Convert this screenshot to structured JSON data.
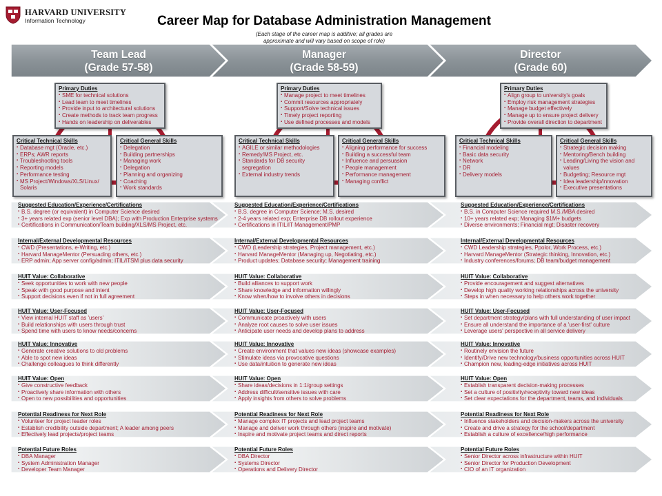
{
  "header": {
    "org_name": "HARVARD UNIVERSITY",
    "org_sub": "Information Technology",
    "title": "Career Map for Database Administration Management",
    "subtitle_line1": "(Each stage of the career map is additive; all grades are",
    "subtitle_line2": "approximate and will vary based on scope of role)"
  },
  "colors": {
    "accent": "#a51c30",
    "banner": "#8c9499",
    "box_fill": "#d6d9dd",
    "box_border": "#595d62"
  },
  "stages": [
    {
      "name": "Team Lead",
      "grade": "(Grade 57-58)",
      "primary_duties": {
        "title": "Primary Duties",
        "items": [
          "SME for technical solutions",
          "Lead team to meet timelines",
          "Provide input to architectural solutions",
          "Create methods to track team progress",
          "Hands on leadership on deliverables"
        ]
      },
      "technical_skills": {
        "title": "Critical Technical Skills",
        "items": [
          "Database mgt (Oracle, etc.)",
          "ERPs; AWR reports",
          "Troubleshooting tools",
          "Reporting models",
          "Performance testing",
          "MS Project/Windows/XLS/Linux/ Solaris"
        ]
      },
      "general_skills": {
        "title": "Critical General Skills",
        "items": [
          "Delegation",
          "Building partnerships",
          "Managing work",
          "Delegation",
          "Planning and organizing",
          "Coaching",
          "Work standards"
        ]
      }
    },
    {
      "name": "Manager",
      "grade": "(Grade 58-59)",
      "primary_duties": {
        "title": "Primary Duties",
        "items": [
          "Manage project to meet timelines",
          "Commit resources appropriately",
          "Support/Solve technical issues",
          "Timely project reporting",
          "Use defined processes and models"
        ]
      },
      "technical_skills": {
        "title": "Critical Technical Skills",
        "items": [
          "AGILE or similar methodologies",
          "Remedy/MS Project, etc.",
          "Standards for DB security segregation",
          "External industry trends"
        ]
      },
      "general_skills": {
        "title": "Critical General Skills",
        "items": [
          "Aligning performance for success",
          "Building a successful team",
          "Influence and persuasion",
          "People management",
          "Performance management",
          "Managing conflict"
        ]
      }
    },
    {
      "name": "Director",
      "grade": "(Grade 60)",
      "primary_duties": {
        "title": "Primary Duties",
        "items": [
          "Align group to university's goals",
          "Employ risk management strategies",
          "Manage budget effectively",
          "Manage up to ensure project delivery",
          "Provide overall direction to department"
        ]
      },
      "technical_skills": {
        "title": "Critical Technical Skills",
        "items": [
          "Financial modeling",
          "Basic data security",
          "Network",
          "DR",
          "Delivery models"
        ]
      },
      "general_skills": {
        "title": "Critical General Skills",
        "items": [
          "Strategic decision making",
          "Mentoring/Bench building",
          "Leading/Living the vision and values",
          "Budgeting; Resource mgt",
          "Idea leadership/innovation",
          "Executive presentations"
        ]
      }
    }
  ],
  "bands": [
    {
      "cells": [
        {
          "title": "Suggested Education/Experience/Certifications",
          "items": [
            "B.S. degree (or equivalent) in Computer Science desired",
            "3+ years related exp (senior level DBA); Exp with Production Enterprise systems",
            "Certifications in Communication/Team building/XLS/MS Project, etc."
          ]
        },
        {
          "title": "Suggested Education/Experience/Certifications",
          "items": [
            "B.S. degree in Computer Science; M.S. desired",
            "2-4 years related exp; Enterprise DB rollout experience",
            "Certifications in ITIL/IT Management/PMP"
          ]
        },
        {
          "title": "Suggested Education/Experience/Certifications",
          "items": [
            "B.S. in Computer Science required  M.S./MBA desired",
            "10+ years related exp; Managing $1M+ budgets",
            "Diverse environments; Financial mgt; Disaster recovery"
          ]
        }
      ]
    },
    {
      "cells": [
        {
          "title": "Internal/External Developmental Resources",
          "items": [
            "CWD (Presentations, e-Writing, etc.)",
            "Harvard ManageMentor (Persuading others, etc.)",
            "ERP admin; App server config/admin; ITIL/ITSM plus data security"
          ]
        },
        {
          "title": "Internal/External Developmental Resources",
          "items": [
            "CWD (Leadership strategies, Project management, etc.)",
            "Harvard ManageMentor (Managing up, Negotiating, etc.)",
            "Product updates; Database security; Management training"
          ]
        },
        {
          "title": "Internal/External Developmental Resources",
          "items": [
            "CWD Leadership strategies, Ppolor, Work Process, etc.)",
            "Harvard ManageMentor (Strategic thinking, Innovation, etc.)",
            "Industry conferences/forums; DB team/budget management"
          ]
        }
      ]
    },
    {
      "cells": [
        {
          "title": "HUIT Value: Collaborative",
          "items": [
            "Seek opportunities to work with new people",
            "Speak with good purpose and intent",
            "Support decisions even if not in full agreement"
          ]
        },
        {
          "title": "HUIT Value: Collaborative",
          "items": [
            "Build alliances to support work",
            "Share knowledge and information willingly",
            "Know when/how to involve others in decisions"
          ]
        },
        {
          "title": "HUIT Value: Collaborative",
          "items": [
            "Provide encouragement and suggest alternatives",
            "Develop high quality working relationships across the university",
            "Steps in when necessary to help others work together"
          ]
        }
      ]
    },
    {
      "cells": [
        {
          "title": "HUIT Value: User-Focused",
          "items": [
            "View internal HUIT staff as 'users'",
            "Build relationships with users through trust",
            "Spend time with users to know needs/concerns"
          ]
        },
        {
          "title": "HUIT Value: User-Focused",
          "items": [
            "Communicate proactively with users",
            "Analyze root causes to solve user issues",
            "Anticipate user needs and develop plans to address"
          ]
        },
        {
          "title": "HUIT Value: User-Focused",
          "items": [
            "Set department strategy/plans with full understanding of user impact",
            "Ensure all understand the importance of a 'user-first' culture",
            "Leverage users' perspective in all service delivery"
          ]
        }
      ]
    },
    {
      "cells": [
        {
          "title": "HUIT Value: Innovative",
          "items": [
            "Generate creative solutions to old problems",
            "Able to spot new ideas",
            "Challenge colleagues to think differently"
          ]
        },
        {
          "title": "HUIT Value: Innovative",
          "items": [
            "Create environment that values new ideas (showcase examples)",
            "Stimulate ideas via provocative questions",
            "Use data/intuition to generate new ideas"
          ]
        },
        {
          "title": "HUIT Value: Innovative",
          "items": [
            "Routinely envision the future",
            "Identify/Drive new technology/business opportunities across HUIT",
            "Champion new, leading-edge initiatives across HUIT"
          ]
        }
      ]
    },
    {
      "cells": [
        {
          "title": "HUIT Value: Open",
          "items": [
            "Give constructive feedback",
            "Proactively share information with others",
            "Open to new possibilities and opportunities"
          ]
        },
        {
          "title": "HUIT Value: Open",
          "items": [
            "Share ideas/decisions in 1:1/group settings",
            "Address difficult/sensitive issues with care",
            "Apply insights from others to solve problems"
          ]
        },
        {
          "title": "HUIT Value: Open",
          "items": [
            "Establish transparent decision-making processes",
            "Set a culture of positivity/receptivity toward new ideas",
            "Set clear expectations for the department, teams, and individuals"
          ]
        }
      ]
    },
    {
      "cells": [
        {
          "title": "Potential Readiness for Next Role",
          "items": [
            "Volunteer for project leader roles",
            "Establish credibility outside department; A leader among peers",
            "Effectively lead projects/project teams"
          ]
        },
        {
          "title": "Potential Readiness for Next Role",
          "items": [
            "Manage complex IT projects and lead project teams",
            "Manage and deliver work through others (inspire and motivate)",
            "Inspire and motivate project teams and direct reports"
          ]
        },
        {
          "title": "Potential Readiness for Next Role",
          "items": [
            "Influence stakeholders and decision-makers across the university",
            "Create and drive a strategy for the school/department",
            "Establish a culture of excellence/high performance"
          ]
        }
      ]
    },
    {
      "cells": [
        {
          "title": "Potential Future Roles",
          "items": [
            "DBA Manager",
            "System Administration Manager",
            "Developer Team Manager"
          ]
        },
        {
          "title": "Potential Future Roles",
          "items": [
            "DBA Director",
            "Systems Director",
            "Operations and Delivery Director"
          ]
        },
        {
          "title": "Potential Future Roles",
          "items": [
            "Senior Director across infrastructure within HUIT",
            "Senior Director for Production Development",
            "CIO of an IT organization"
          ]
        }
      ]
    }
  ]
}
